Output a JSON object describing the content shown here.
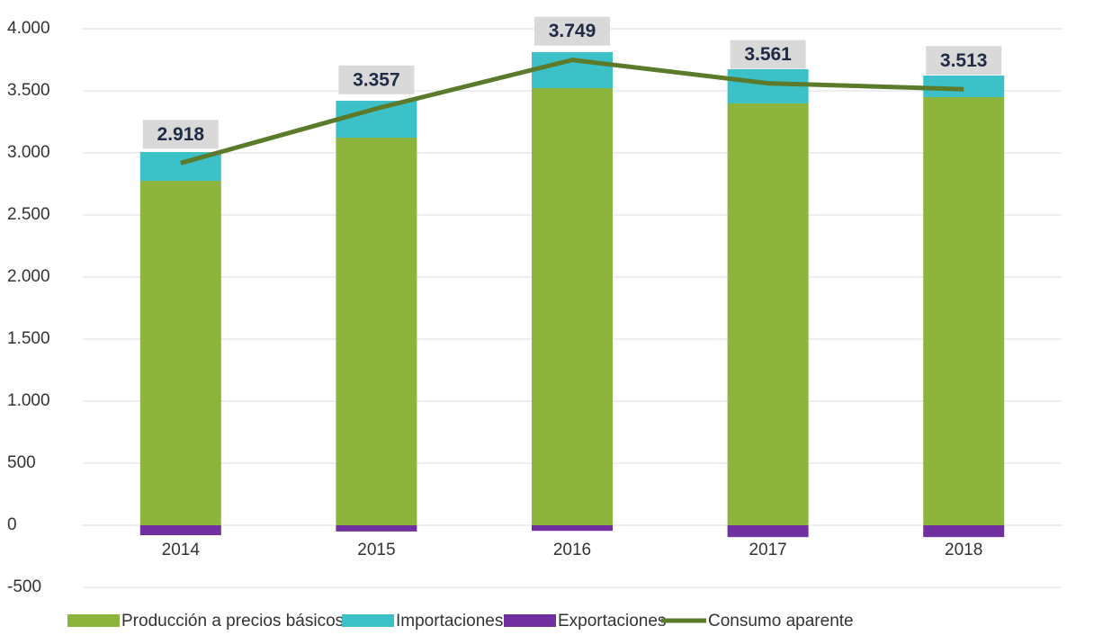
{
  "chart_data": {
    "type": "bar_line",
    "categories": [
      "2014",
      "2015",
      "2016",
      "2017",
      "2018"
    ],
    "series": [
      {
        "name": "Producción a precios básicos",
        "color": "#8db43c",
        "values": [
          2775,
          3123,
          3522,
          3399,
          3449
        ]
      },
      {
        "name": "Importaciones",
        "color": "#3cc1c9",
        "values": [
          232,
          297,
          290,
          275,
          174
        ]
      },
      {
        "name": "Exportaciones",
        "color": "#7030a0",
        "values": [
          -80,
          -50,
          -45,
          -95,
          -95
        ]
      },
      {
        "name": "Consumo aparente",
        "color": "#5b7b2b",
        "type": "line",
        "values": [
          2918,
          3357,
          3749,
          3561,
          3513
        ],
        "value_labels": [
          "2.918",
          "3.357",
          "3.749",
          "3.561",
          "3.513"
        ]
      }
    ],
    "ylim": [
      -500,
      4000
    ],
    "yticks": [
      -500,
      0,
      500,
      {
        "value": 1000,
        "label": "1.000"
      },
      {
        "value": 1500,
        "label": "1.500"
      },
      {
        "value": 2000,
        "label": "2.000"
      },
      {
        "value": 2500,
        "label": "2.500"
      },
      {
        "value": 3000,
        "label": "3.000"
      },
      {
        "value": 3500,
        "label": "3.500"
      },
      {
        "value": 4000,
        "label": "4.000"
      }
    ],
    "grid": true,
    "legend": "bottom"
  }
}
